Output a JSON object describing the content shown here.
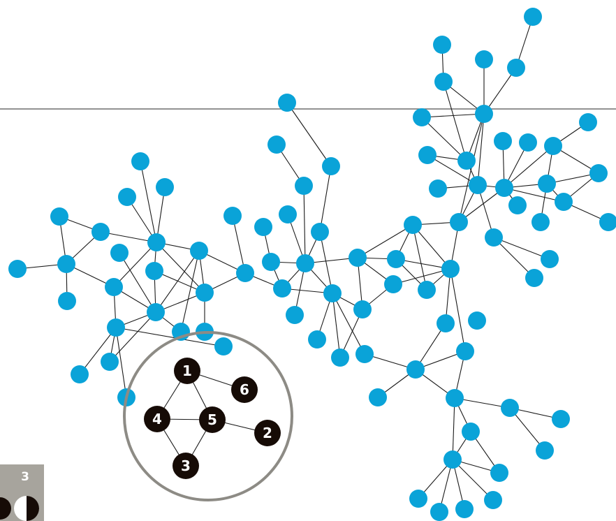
{
  "colors": {
    "node": "#0aa3d8",
    "edge": "#1a1a1a",
    "hline": "#6f6f6f",
    "circle": "#8d8b85",
    "example_node": "#160b06",
    "badge_bg": "#a7a49d"
  },
  "example_nodes": [
    {
      "label": "1"
    },
    {
      "label": "6"
    },
    {
      "label": "4"
    },
    {
      "label": "5"
    },
    {
      "label": "2"
    },
    {
      "label": "3"
    }
  ],
  "badge": {
    "label": "3",
    "icon": "half-filled-circles-icon"
  }
}
